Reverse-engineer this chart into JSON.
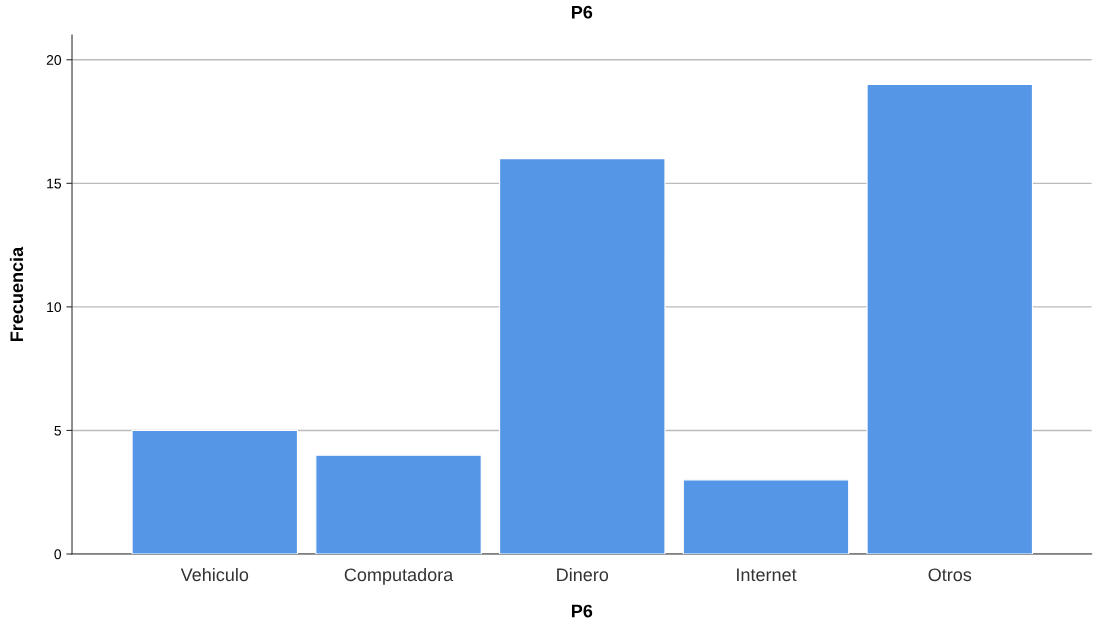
{
  "chart_data": {
    "type": "bar",
    "title": "P6",
    "xlabel": "P6",
    "ylabel": "Frecuencia",
    "categories": [
      "Vehiculo",
      "Computadora",
      "Dinero",
      "Internet",
      "Otros"
    ],
    "values": [
      5,
      4,
      16,
      3,
      19
    ],
    "color": "#5596e6",
    "ylim": [
      0,
      21
    ],
    "yticks": [
      0,
      5,
      10,
      15,
      20
    ],
    "grid": "y",
    "legend": false
  }
}
